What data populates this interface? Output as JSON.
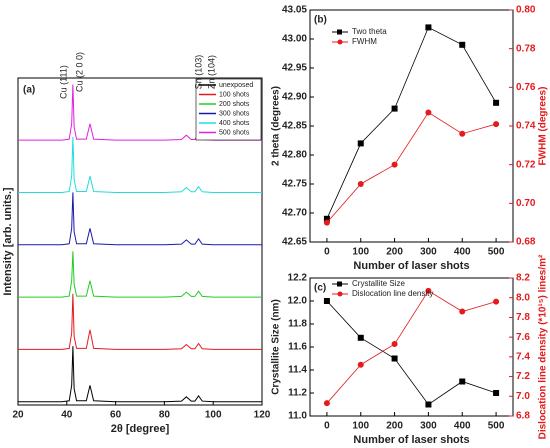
{
  "chart_data": [
    {
      "type": "line",
      "title": "(a)",
      "xlabel": "2θ [degree]",
      "ylabel": "Intensity [arb. units.]",
      "x": [
        20,
        30,
        38,
        41,
        42,
        42.5,
        43,
        44,
        48,
        49.5,
        51,
        60,
        70,
        80,
        87,
        89,
        91,
        92.5,
        94,
        95.5,
        100,
        110,
        120
      ],
      "xlim": [
        20,
        120
      ],
      "xticks": [
        20,
        40,
        60,
        80,
        100,
        120
      ],
      "ylim": [
        0,
        100
      ],
      "legend": "upper right",
      "annotations": [
        "Cu (111)",
        "Cu (2 0 0)",
        "Sn (103)",
        "Zn (104)"
      ],
      "series": [
        {
          "name": "unexposed",
          "color": "#000000",
          "values": [
            1,
            1,
            1,
            1.3,
            6,
            18,
            5,
            1.3,
            1.3,
            6,
            1.3,
            1,
            1,
            1,
            1.2,
            2.5,
            1.2,
            1.2,
            2.8,
            1.2,
            1,
            1,
            1
          ]
        },
        {
          "name": "100 shots",
          "color": "#e41a1c",
          "values": [
            17,
            17,
            17,
            17.3,
            22,
            34,
            21,
            17.3,
            17.3,
            23,
            17.3,
            17,
            17,
            17,
            17.2,
            18.5,
            17.2,
            17.2,
            18.8,
            17.2,
            17,
            17,
            17
          ]
        },
        {
          "name": "200 shots",
          "color": "#22cc22",
          "values": [
            33,
            33,
            33,
            33.3,
            38,
            47,
            37,
            33.3,
            33.3,
            38,
            33.3,
            33,
            33,
            33,
            33.2,
            34.5,
            33.2,
            33.2,
            34.8,
            33.2,
            33,
            33,
            33
          ]
        },
        {
          "name": "300 shots",
          "color": "#1a1aaa",
          "values": [
            49,
            49,
            49,
            49.3,
            54,
            65,
            53,
            49.3,
            49.3,
            54,
            49.3,
            49,
            49,
            49,
            49.2,
            50.5,
            49.2,
            49.2,
            50.8,
            49.2,
            49,
            49,
            49
          ]
        },
        {
          "name": "400 shots",
          "color": "#22dddd",
          "values": [
            65,
            65,
            65,
            65.3,
            70,
            82,
            69,
            65.3,
            65.3,
            70,
            65.3,
            65,
            65,
            65,
            65.2,
            66.5,
            65.2,
            65.2,
            66.8,
            65.2,
            65,
            65,
            65
          ]
        },
        {
          "name": "500 shots",
          "color": "#dd22dd",
          "values": [
            81,
            81,
            81,
            81.3,
            86,
            98,
            85,
            81.3,
            81.3,
            86,
            81.3,
            81,
            81,
            81,
            81.2,
            82.5,
            81.2,
            81.2,
            82.8,
            81.2,
            81,
            81,
            81
          ]
        }
      ]
    },
    {
      "type": "line",
      "title": "(b)",
      "xlabel": "Number of laser shots",
      "ylabel": "2 theta (degrees)",
      "y2label": "FWHM (degrees)",
      "x": [
        0,
        100,
        200,
        300,
        400,
        500
      ],
      "xlim": [
        -50,
        550
      ],
      "xticks": [
        0,
        100,
        200,
        300,
        400,
        500
      ],
      "ylim": [
        42.65,
        43.05
      ],
      "yticks": [
        42.65,
        {
          "value": 42.7,
          "label": "42.70"
        },
        42.75,
        {
          "value": 42.8,
          "label": "42.80"
        },
        42.85,
        {
          "value": 42.9,
          "label": "42.90"
        },
        42.95,
        {
          "value": 43.0,
          "label": "43.00"
        },
        43.05
      ],
      "y2lim": [
        0.68,
        0.8
      ],
      "y2ticks": [
        0.68,
        {
          "value": 0.7,
          "label": "0.70"
        },
        0.72,
        0.74,
        0.76,
        0.78,
        {
          "value": 0.8,
          "label": "0.80"
        }
      ],
      "legend": "upper left",
      "series": [
        {
          "name": "Two theta",
          "color": "#000000",
          "marker": "square",
          "values": [
            42.69,
            42.82,
            42.88,
            43.02,
            42.99,
            42.89
          ]
        },
        {
          "name": "FWHM",
          "color": "#e41a1c",
          "marker": "circle",
          "axis": "y2",
          "values": [
            0.69,
            0.71,
            0.72,
            0.747,
            0.736,
            0.741
          ]
        }
      ]
    },
    {
      "type": "line",
      "title": "(c)",
      "xlabel": "Number of laser shots",
      "ylabel": "Crystallite Size (nm)",
      "y2label": "Dislocation line density (*10¹⁵) lines/m²",
      "x": [
        0,
        100,
        200,
        300,
        400,
        500
      ],
      "xlim": [
        -50,
        550
      ],
      "xticks": [
        0,
        100,
        200,
        300,
        400,
        500
      ],
      "ylim": [
        11.0,
        12.2
      ],
      "yticks": [
        {
          "value": 11.0,
          "label": "11.0"
        },
        11.2,
        11.4,
        11.6,
        11.8,
        {
          "value": 12.0,
          "label": "12.0"
        },
        12.2
      ],
      "y2lim": [
        6.8,
        8.2
      ],
      "y2ticks": [
        6.8,
        {
          "value": 7.0,
          "label": "7.0"
        },
        7.2,
        7.4,
        7.6,
        7.8,
        {
          "value": 8.0,
          "label": "8.0"
        },
        8.2
      ],
      "legend": "upper left",
      "series": [
        {
          "name": "Crystallite Size",
          "color": "#000000",
          "marker": "square",
          "values": [
            12.0,
            11.68,
            11.5,
            11.1,
            11.3,
            11.2
          ]
        },
        {
          "name": "Dislocation line density",
          "color": "#e41a1c",
          "marker": "circle",
          "axis": "y2",
          "values": [
            6.93,
            7.32,
            7.53,
            8.07,
            7.86,
            7.96
          ]
        }
      ]
    }
  ]
}
